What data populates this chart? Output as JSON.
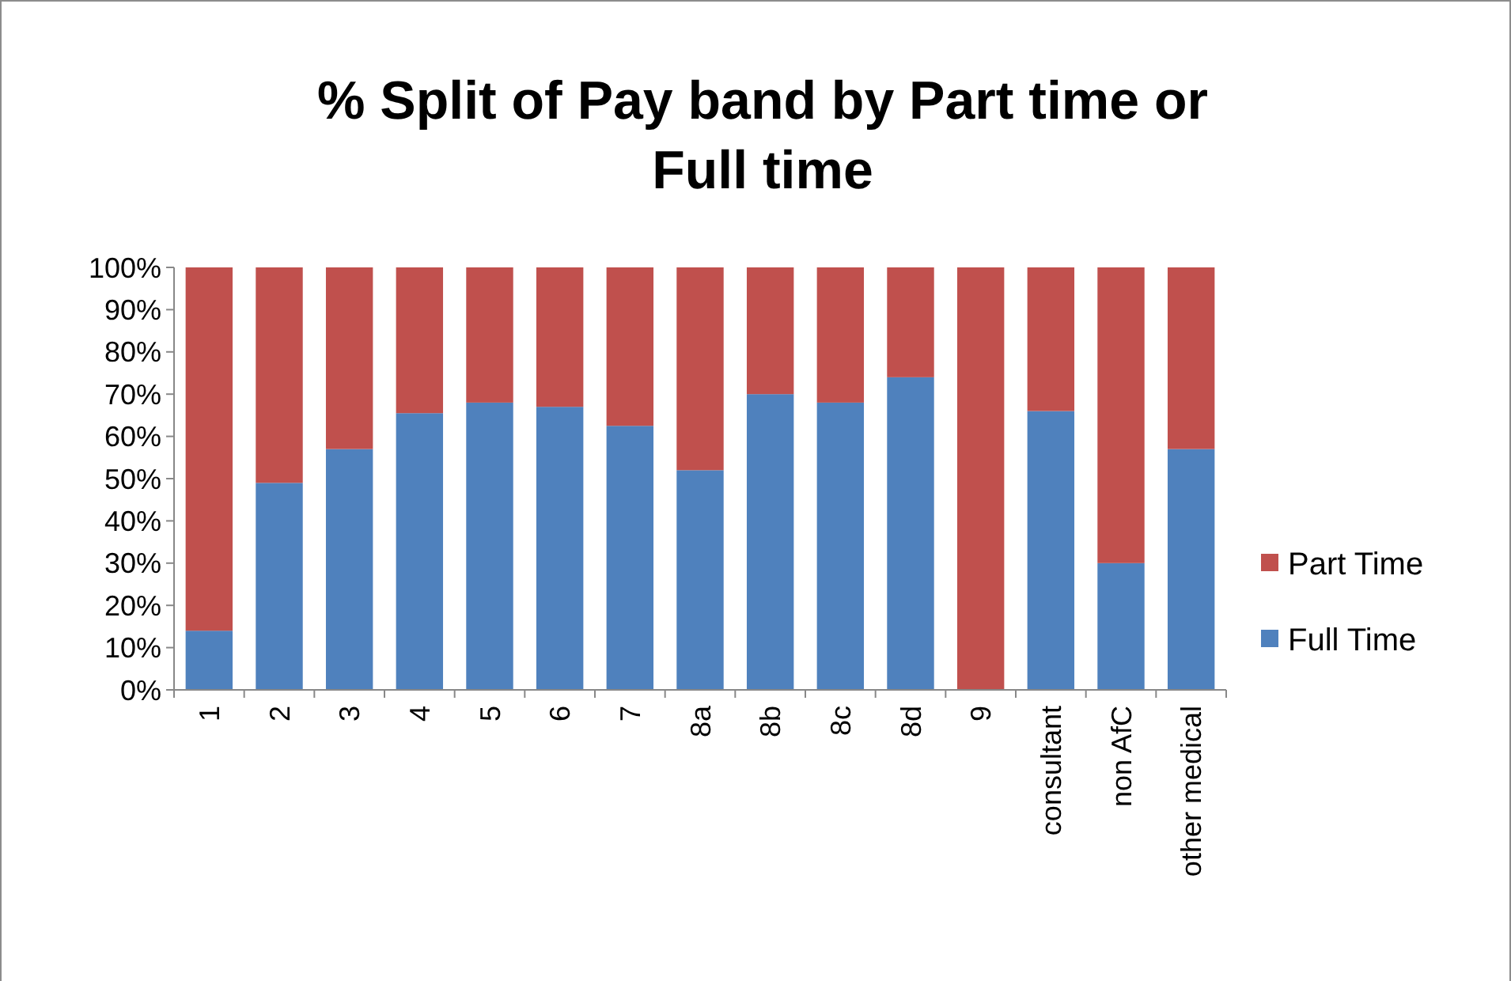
{
  "chart_data": {
    "type": "bar",
    "title": "% Split of Pay band by Part time or Full time",
    "stacked": true,
    "categories": [
      "1",
      "2",
      "3",
      "4",
      "5",
      "6",
      "7",
      "8a",
      "8b",
      "8c",
      "8d",
      "9",
      "consultant",
      "non AfC",
      "other medical"
    ],
    "series": [
      {
        "name": "Full Time",
        "color": "#4f81bd",
        "values": [
          14,
          49,
          57,
          65.5,
          68,
          67,
          62.5,
          52,
          70,
          68,
          74,
          0,
          66,
          30,
          57
        ]
      },
      {
        "name": "Part Time",
        "color": "#c0504d",
        "values": [
          86,
          51,
          43,
          34.5,
          32,
          33,
          37.5,
          48,
          30,
          32,
          26,
          100,
          34,
          70,
          43
        ]
      }
    ],
    "ylim": [
      0,
      100
    ],
    "yticks": [
      {
        "value": 0,
        "label": "0%"
      },
      {
        "value": 10,
        "label": "10%"
      },
      {
        "value": 20,
        "label": "20%"
      },
      {
        "value": 30,
        "label": "30%"
      },
      {
        "value": 40,
        "label": "40%"
      },
      {
        "value": 50,
        "label": "50%"
      },
      {
        "value": 60,
        "label": "60%"
      },
      {
        "value": 70,
        "label": "70%"
      },
      {
        "value": 80,
        "label": "80%"
      },
      {
        "value": 90,
        "label": "90%"
      },
      {
        "value": 100,
        "label": "100%"
      }
    ],
    "grid": false,
    "legend": "right"
  }
}
